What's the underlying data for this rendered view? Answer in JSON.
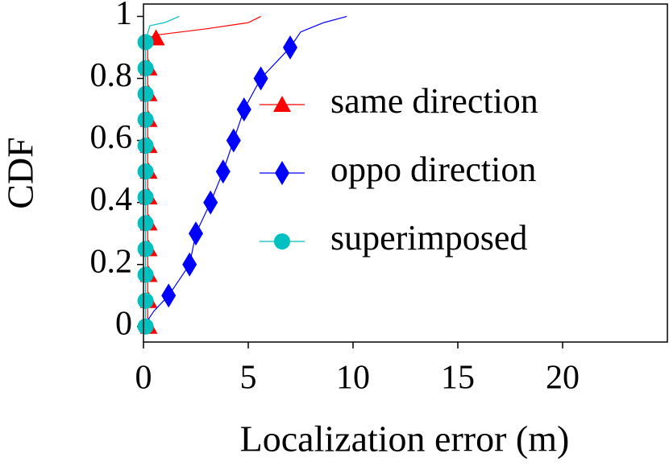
{
  "chart_data": {
    "type": "line",
    "xlabel": "Localization error (m)",
    "ylabel": "CDF",
    "xlim": [
      0,
      25
    ],
    "ylim": [
      -0.05,
      1.04
    ],
    "xticks": [
      0,
      5,
      10,
      15,
      20
    ],
    "yticks": [
      0,
      0.2,
      0.4,
      0.6,
      0.8,
      1
    ],
    "legend": "center right",
    "series": [
      {
        "name": "same direction",
        "color": "#ff0000",
        "marker": "triangle",
        "x": [
          0.2,
          0.2,
          0.6,
          3,
          5,
          5.6
        ],
        "values": [
          0,
          0.93,
          0.94,
          0.96,
          0.98,
          1.0
        ],
        "markers": {
          "x": [
            0.25,
            0.25,
            0.25,
            0.25,
            0.25,
            0.25,
            0.25,
            0.25,
            0.25,
            0.25,
            0.25,
            0.6
          ],
          "values": [
            0,
            0.083,
            0.167,
            0.25,
            0.333,
            0.417,
            0.5,
            0.583,
            0.667,
            0.75,
            0.833,
            0.93
          ]
        }
      },
      {
        "name": "oppo direction",
        "color": "#0000ff",
        "marker": "diamond",
        "x": [
          0,
          0.5,
          1.2,
          2.2,
          2.5,
          3.2,
          3.8,
          4.3,
          4.8,
          5.6,
          7.0,
          7.5,
          8.6,
          9.7
        ],
        "values": [
          0,
          0.05,
          0.1,
          0.2,
          0.3,
          0.4,
          0.5,
          0.6,
          0.7,
          0.8,
          0.9,
          0.95,
          0.98,
          1.0
        ],
        "markers": {
          "x": [
            1.2,
            2.2,
            2.5,
            3.2,
            3.8,
            4.3,
            4.8,
            5.6,
            7.0
          ],
          "values": [
            0.1,
            0.2,
            0.3,
            0.4,
            0.5,
            0.6,
            0.7,
            0.8,
            0.9
          ]
        }
      },
      {
        "name": "superimposed",
        "color": "#00c0c0",
        "marker": "circle",
        "x": [
          0.1,
          0.1,
          0.3,
          1,
          1.7
        ],
        "values": [
          0,
          0.92,
          0.97,
          0.98,
          1.0
        ],
        "markers": {
          "x": [
            0.1,
            0.1,
            0.1,
            0.1,
            0.1,
            0.1,
            0.1,
            0.1,
            0.1,
            0.1,
            0.1,
            0.1
          ],
          "values": [
            0,
            0.083,
            0.167,
            0.25,
            0.333,
            0.417,
            0.5,
            0.583,
            0.667,
            0.75,
            0.833,
            0.917
          ]
        }
      }
    ]
  }
}
